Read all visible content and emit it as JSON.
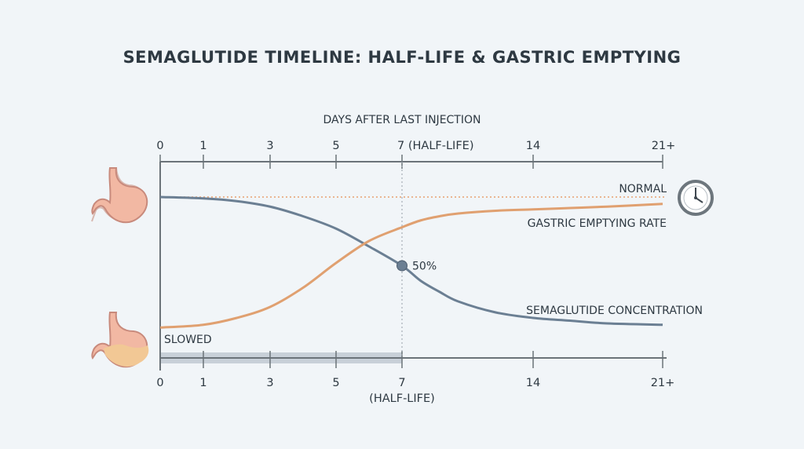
{
  "chart_data": {
    "type": "line",
    "title": "SEMAGLUTIDE TIMELINE: HALF-LIFE & GASTRIC EMPTYING",
    "top_axis_title": "DAYS AFTER LAST INJECTION",
    "x_ticks": [
      0,
      1,
      3,
      5,
      7,
      14,
      21
    ],
    "top_tick_labels": [
      "0",
      "1",
      "3",
      "5",
      "7 (HALF-LIFE)",
      "14",
      "21+"
    ],
    "bottom_tick_labels": [
      "0",
      "1",
      "3",
      "5",
      "7",
      "14",
      "21+"
    ],
    "bottom_extra_label": "(HALF-LIFE)",
    "reference_line": {
      "label": "NORMAL",
      "value": 100
    },
    "lower_label": "SLOWED",
    "half_life_marker": {
      "x": 7,
      "y": 50,
      "label": "50%"
    },
    "series": [
      {
        "name": "SEMAGLUTIDE CONCENTRATION",
        "color": "#6b7f93",
        "x": [
          0,
          1,
          2,
          3,
          4,
          5,
          6,
          7,
          8,
          9,
          10,
          12,
          14,
          16,
          18,
          21
        ],
        "y": [
          100,
          99,
          97,
          93,
          86,
          77,
          64,
          50,
          39,
          31,
          24,
          16,
          12,
          10,
          8,
          7
        ]
      },
      {
        "name": "GASTRIC EMPTYING RATE",
        "color": "#e0a070",
        "x": [
          0,
          1,
          2,
          3,
          4,
          5,
          6,
          7,
          8,
          9,
          10,
          12,
          14,
          16,
          18,
          21
        ],
        "y": [
          5,
          7,
          12,
          20,
          34,
          52,
          68,
          78,
          83,
          86,
          88,
          90,
          91,
          92,
          93,
          95
        ]
      }
    ],
    "grid": false
  },
  "icons": {
    "stomach_top": "stomach-icon",
    "stomach_bottom": "stomach-full-icon",
    "clock": "clock-icon"
  },
  "colors": {
    "axis": "#6b7379",
    "normal_line": "#e8a070",
    "half_life_band": "#c8d0d8"
  }
}
